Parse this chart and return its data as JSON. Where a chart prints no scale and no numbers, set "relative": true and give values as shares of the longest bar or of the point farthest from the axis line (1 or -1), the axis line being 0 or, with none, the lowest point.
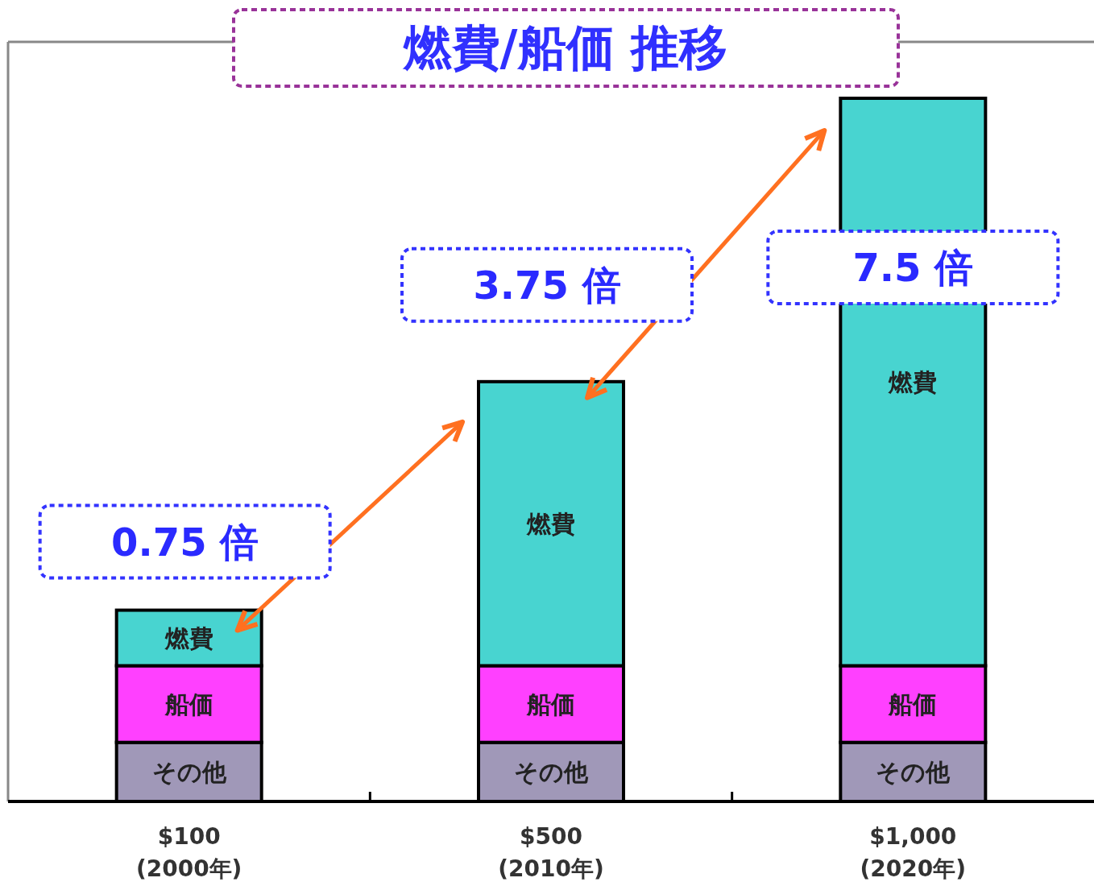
{
  "chart_data": {
    "type": "bar",
    "title": "燃費/船価 推移",
    "categories": [
      "$100\n(2000年)",
      "$500\n(2010年)",
      "$1,000\n(2020年)"
    ],
    "stacked": true,
    "relative": true,
    "series": [
      {
        "name": "その他",
        "color": "#a098b8",
        "values": [
          0.084,
          0.084,
          0.084
        ]
      },
      {
        "name": "船価",
        "color": "#ff40ff",
        "values": [
          0.109,
          0.109,
          0.109
        ]
      },
      {
        "name": "燃費",
        "color": "#48d4d0",
        "values": [
          0.079,
          0.404,
          0.807
        ]
      }
    ],
    "annotations": [
      "0.75 倍",
      "3.75 倍",
      "7.5 倍"
    ]
  }
}
